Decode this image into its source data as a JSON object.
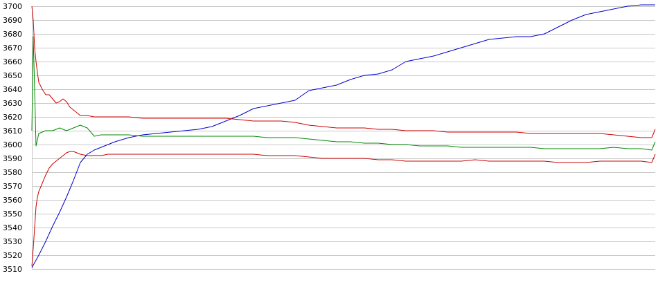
{
  "chart_data": {
    "type": "line",
    "title": "",
    "xlabel": "",
    "ylabel": "",
    "ylim": [
      3510,
      3700
    ],
    "xlim": [
      0,
      900
    ],
    "yticks": [
      3510,
      3520,
      3530,
      3540,
      3550,
      3560,
      3570,
      3580,
      3590,
      3600,
      3610,
      3620,
      3630,
      3640,
      3650,
      3660,
      3670,
      3680,
      3690,
      3700
    ],
    "grid": true,
    "legend": "none",
    "series": [
      {
        "color": "#0000cc",
        "x": [
          0,
          10,
          20,
          30,
          40,
          50,
          60,
          70,
          80,
          90,
          100,
          110,
          120,
          140,
          160,
          180,
          200,
          220,
          240,
          260,
          280,
          300,
          320,
          340,
          360,
          380,
          400,
          420,
          440,
          460,
          480,
          500,
          520,
          540,
          560,
          580,
          600,
          620,
          640,
          660,
          680,
          700,
          720,
          740,
          760,
          780,
          800,
          820,
          840,
          860,
          880,
          900
        ],
        "y": [
          3511,
          3520,
          3530,
          3541,
          3551,
          3562,
          3574,
          3587,
          3593,
          3596,
          3598,
          3600,
          3602,
          3605,
          3607,
          3608,
          3609,
          3610,
          3611,
          3613,
          3617,
          3621,
          3626,
          3628,
          3630,
          3632,
          3639,
          3641,
          3643,
          3647,
          3650,
          3651,
          3654,
          3660,
          3662,
          3664,
          3667,
          3670,
          3673,
          3676,
          3677,
          3678,
          3678,
          3680,
          3685,
          3690,
          3694,
          3696,
          3698,
          3700,
          3701,
          3701
        ]
      },
      {
        "color": "#008800",
        "x": [
          0,
          2,
          4,
          6,
          10,
          20,
          30,
          40,
          50,
          60,
          70,
          80,
          90,
          100,
          110,
          120,
          140,
          160,
          180,
          200,
          220,
          240,
          260,
          280,
          300,
          320,
          340,
          360,
          380,
          400,
          420,
          440,
          460,
          480,
          500,
          520,
          540,
          560,
          580,
          600,
          620,
          640,
          660,
          680,
          700,
          720,
          740,
          760,
          780,
          800,
          820,
          840,
          860,
          880,
          895,
          900
        ],
        "y": [
          3610,
          3678,
          3640,
          3599,
          3608,
          3610,
          3610,
          3612,
          3610,
          3612,
          3614,
          3612,
          3606,
          3607,
          3607,
          3607,
          3607,
          3606,
          3606,
          3606,
          3606,
          3606,
          3606,
          3606,
          3606,
          3606,
          3605,
          3605,
          3605,
          3604,
          3603,
          3602,
          3602,
          3601,
          3601,
          3600,
          3600,
          3599,
          3599,
          3599,
          3598,
          3598,
          3598,
          3598,
          3598,
          3598,
          3597,
          3597,
          3597,
          3597,
          3597,
          3598,
          3597,
          3597,
          3596,
          3602
        ]
      },
      {
        "color": "#cc0000",
        "x": [
          0,
          2,
          4,
          6,
          8,
          10,
          15,
          20,
          25,
          30,
          35,
          40,
          45,
          50,
          55,
          60,
          70,
          80,
          90,
          100,
          110,
          120,
          140,
          160,
          180,
          200,
          220,
          240,
          260,
          280,
          300,
          320,
          340,
          360,
          380,
          400,
          420,
          440,
          460,
          480,
          500,
          520,
          540,
          560,
          580,
          600,
          620,
          640,
          660,
          680,
          700,
          720,
          740,
          760,
          780,
          800,
          820,
          840,
          860,
          880,
          895,
          900
        ],
        "y": [
          3700,
          3690,
          3670,
          3660,
          3652,
          3645,
          3640,
          3636,
          3636,
          3633,
          3630,
          3631,
          3633,
          3631,
          3627,
          3625,
          3621,
          3621,
          3620,
          3620,
          3620,
          3620,
          3620,
          3619,
          3619,
          3619,
          3619,
          3619,
          3619,
          3619,
          3618,
          3617,
          3617,
          3617,
          3616,
          3614,
          3613,
          3612,
          3612,
          3612,
          3611,
          3611,
          3610,
          3610,
          3610,
          3609,
          3609,
          3609,
          3609,
          3609,
          3609,
          3608,
          3608,
          3608,
          3608,
          3608,
          3608,
          3607,
          3606,
          3605,
          3605,
          3611
        ]
      },
      {
        "color": "#cc0000",
        "x": [
          0,
          2,
          4,
          6,
          8,
          10,
          15,
          20,
          25,
          30,
          35,
          40,
          45,
          50,
          55,
          60,
          70,
          80,
          90,
          100,
          110,
          120,
          140,
          160,
          180,
          200,
          220,
          240,
          260,
          280,
          300,
          320,
          340,
          360,
          380,
          400,
          420,
          440,
          460,
          480,
          500,
          520,
          540,
          560,
          580,
          600,
          620,
          640,
          660,
          680,
          700,
          720,
          740,
          760,
          780,
          800,
          820,
          840,
          860,
          880,
          895,
          900
        ],
        "y": [
          3512,
          3525,
          3540,
          3555,
          3562,
          3566,
          3572,
          3578,
          3583,
          3586,
          3588,
          3590,
          3592,
          3594,
          3595,
          3595,
          3593,
          3592,
          3592,
          3592,
          3593,
          3593,
          3593,
          3593,
          3593,
          3593,
          3593,
          3593,
          3593,
          3593,
          3593,
          3593,
          3592,
          3592,
          3592,
          3591,
          3590,
          3590,
          3590,
          3590,
          3589,
          3589,
          3588,
          3588,
          3588,
          3588,
          3588,
          3589,
          3588,
          3588,
          3588,
          3588,
          3588,
          3587,
          3587,
          3587,
          3588,
          3588,
          3588,
          3588,
          3587,
          3593
        ]
      }
    ]
  }
}
